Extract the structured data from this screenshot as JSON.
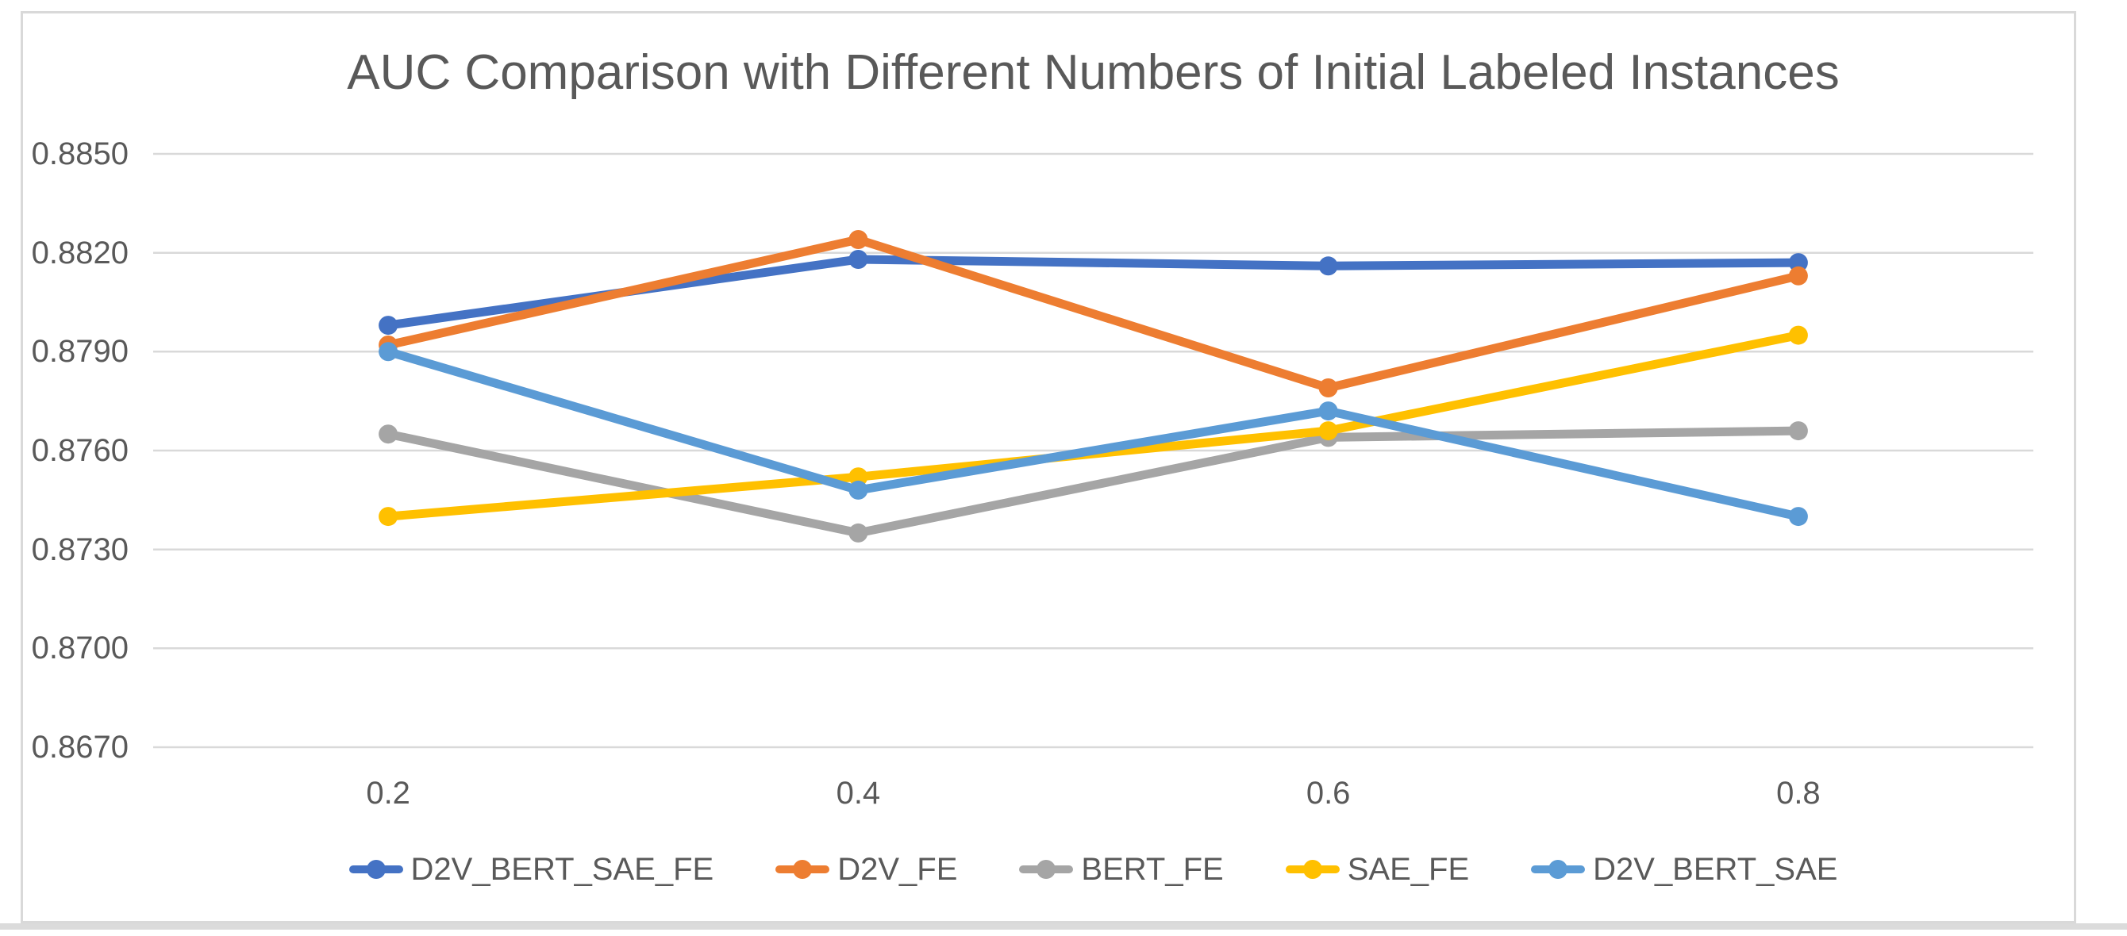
{
  "chart_data": {
    "type": "line",
    "title": "AUC Comparison with Different Numbers of Initial Labeled Instances",
    "xlabel": "",
    "ylabel": "",
    "x_labels": [
      "0.2",
      "0.4",
      "0.6",
      "0.8"
    ],
    "ytick_labels": [
      "0.8850",
      "0.8820",
      "0.8790",
      "0.8760",
      "0.8730",
      "0.8700",
      "0.8670"
    ],
    "ylim": [
      0.867,
      0.885
    ],
    "grid": "horizontal",
    "legend_position": "bottom",
    "text_color": "#595959",
    "gridline_color": "#D9D9D9",
    "frame_color": "#D9D9D9",
    "series": [
      {
        "name": "D2V_BERT_SAE_FE",
        "color": "#4472C4",
        "values": [
          0.8798,
          0.8818,
          0.8816,
          0.8817
        ]
      },
      {
        "name": "D2V_FE",
        "color": "#ED7D31",
        "values": [
          0.8792,
          0.8824,
          0.8779,
          0.8813
        ]
      },
      {
        "name": "BERT_FE",
        "color": "#A5A5A5",
        "values": [
          0.8765,
          0.8735,
          0.8764,
          0.8766
        ]
      },
      {
        "name": "SAE_FE",
        "color": "#FFC000",
        "values": [
          0.874,
          0.8752,
          0.8766,
          0.8795
        ]
      },
      {
        "name": "D2V_BERT_SAE",
        "color": "#5B9BD5",
        "values": [
          0.879,
          0.8748,
          0.8772,
          0.874
        ]
      }
    ]
  }
}
